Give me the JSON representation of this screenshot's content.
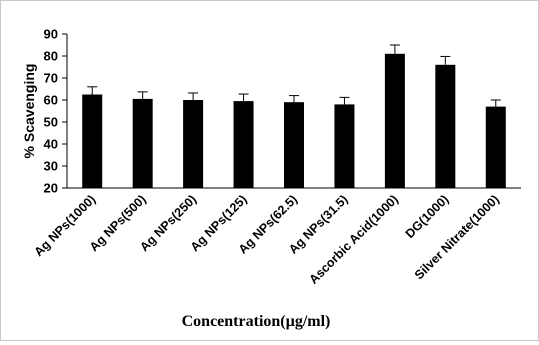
{
  "chart_data": {
    "type": "bar",
    "title": "",
    "xlabel": "Concentration(µg/ml)",
    "ylabel": "% Scavenging",
    "ylim": [
      20,
      90
    ],
    "yticks": [
      20,
      30,
      40,
      50,
      60,
      70,
      80,
      90
    ],
    "grid": false,
    "legend": "none",
    "bar_color": "#000000",
    "categories": [
      "Ag NPs(1000)",
      "Ag NPs(500)",
      "Ag NPs(250)",
      "Ag NPs(125)",
      "Ag NPs(62.5)",
      "Ag NPs(31.5)",
      "Ascorbic Acid(1000)",
      "DG(1000)",
      "Silver Nitrate(1000)"
    ],
    "values": [
      62.5,
      60.5,
      60,
      59.5,
      59,
      58,
      81,
      76,
      57
    ],
    "error": [
      3.5,
      3.2,
      3.2,
      3.2,
      3,
      3.2,
      4,
      3.8,
      3
    ]
  }
}
